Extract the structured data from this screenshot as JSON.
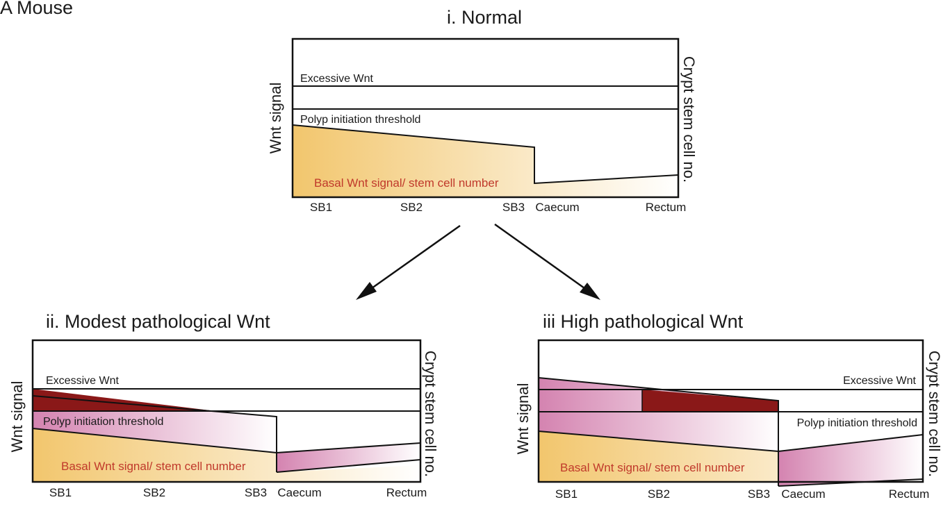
{
  "figure_label": "A  Mouse",
  "colors": {
    "basal_start": "#f2c66d",
    "basal_end": "#ffffff",
    "pink_start": "#d483b0",
    "pink_end": "#ffffff",
    "dark_red": "#8a1818",
    "line": "#111111"
  },
  "axis_labels": {
    "left": "Wnt signal",
    "right": "Crypt stem cell no."
  },
  "x_ticks": [
    "SB1",
    "SB2",
    "SB3",
    "Caecum",
    "Rectum"
  ],
  "panels": [
    {
      "id": "normal",
      "title": "i. Normal",
      "excessive_label": "Excessive Wnt",
      "threshold_label": "Polyp initiation threshold",
      "basal_label": "Basal Wnt signal/ stem cell number"
    },
    {
      "id": "modest",
      "title": "ii.  Modest pathological Wnt",
      "excessive_label": "Excessive Wnt",
      "threshold_label": "Polyp initiation threshold",
      "basal_label": "Basal Wnt signal/ stem cell number"
    },
    {
      "id": "high",
      "title": "iii  High pathological Wnt",
      "excessive_label": "Excessive Wnt",
      "threshold_label": "Polyp initiation threshold",
      "basal_label": "Basal Wnt signal/ stem cell number"
    }
  ]
}
